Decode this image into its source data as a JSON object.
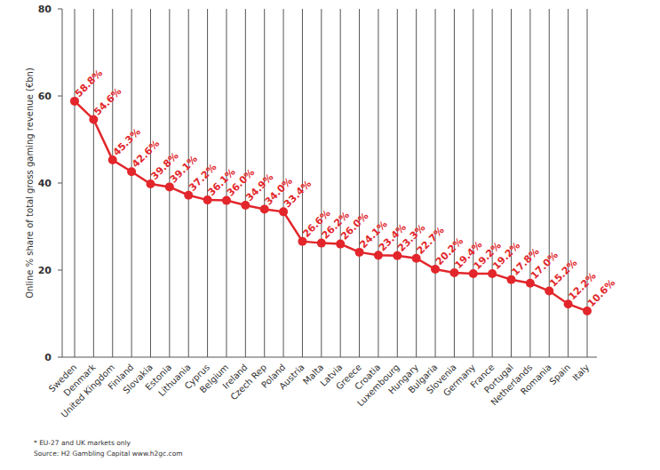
{
  "chart_data": {
    "type": "line",
    "y_label": "Online % share of total gross gaming revenue (€bn)",
    "categories": [
      "Sweden",
      "Denmark",
      "United Kingdom",
      "Finland",
      "Slovakia",
      "Estonia",
      "Lithuania",
      "Cyprus",
      "Belgium",
      "Ireland",
      "Czech Rep",
      "Poland",
      "Austria",
      "Malta",
      "Latvia",
      "Greece",
      "Croatia",
      "Luxembourg",
      "Hungary",
      "Bulgaria",
      "Slovenia",
      "Germany",
      "France",
      "Portugal",
      "Netherlands",
      "Romania",
      "Spain",
      "Italy"
    ],
    "values": [
      58.8,
      54.6,
      45.3,
      42.6,
      39.8,
      39.1,
      37.2,
      36.1,
      36.0,
      34.9,
      34.0,
      33.4,
      26.6,
      26.2,
      26.0,
      24.1,
      23.4,
      23.3,
      22.7,
      20.2,
      19.4,
      19.2,
      19.2,
      17.8,
      17.0,
      15.2,
      12.2,
      10.6
    ],
    "value_labels": [
      "58.8%",
      "54.6%",
      "45.3%",
      "42.6%",
      "39.8%",
      "39.1%",
      "37.2%",
      "36.1%",
      "36.0%",
      "34.9%",
      "34.0%",
      "33.4%",
      "26.6%",
      "26.2%",
      "26.0%",
      "24.1%",
      "23.4%",
      "23.3%",
      "22.7%",
      "20.2%",
      "19.4%",
      "19.2%",
      "19.2%",
      "17.8%",
      "17.0%",
      "15.2%",
      "12.2%",
      "10.6%"
    ],
    "color": "#e2262b",
    "marker": "circle",
    "data_labels": true,
    "grid": true,
    "ylim": [
      0,
      80
    ],
    "yticks": [
      0,
      20,
      40,
      60,
      80
    ],
    "annotations": [
      "* EU-27 and UK markets only",
      "Source: H2 Gambling Capital www.h2gc.com"
    ]
  }
}
